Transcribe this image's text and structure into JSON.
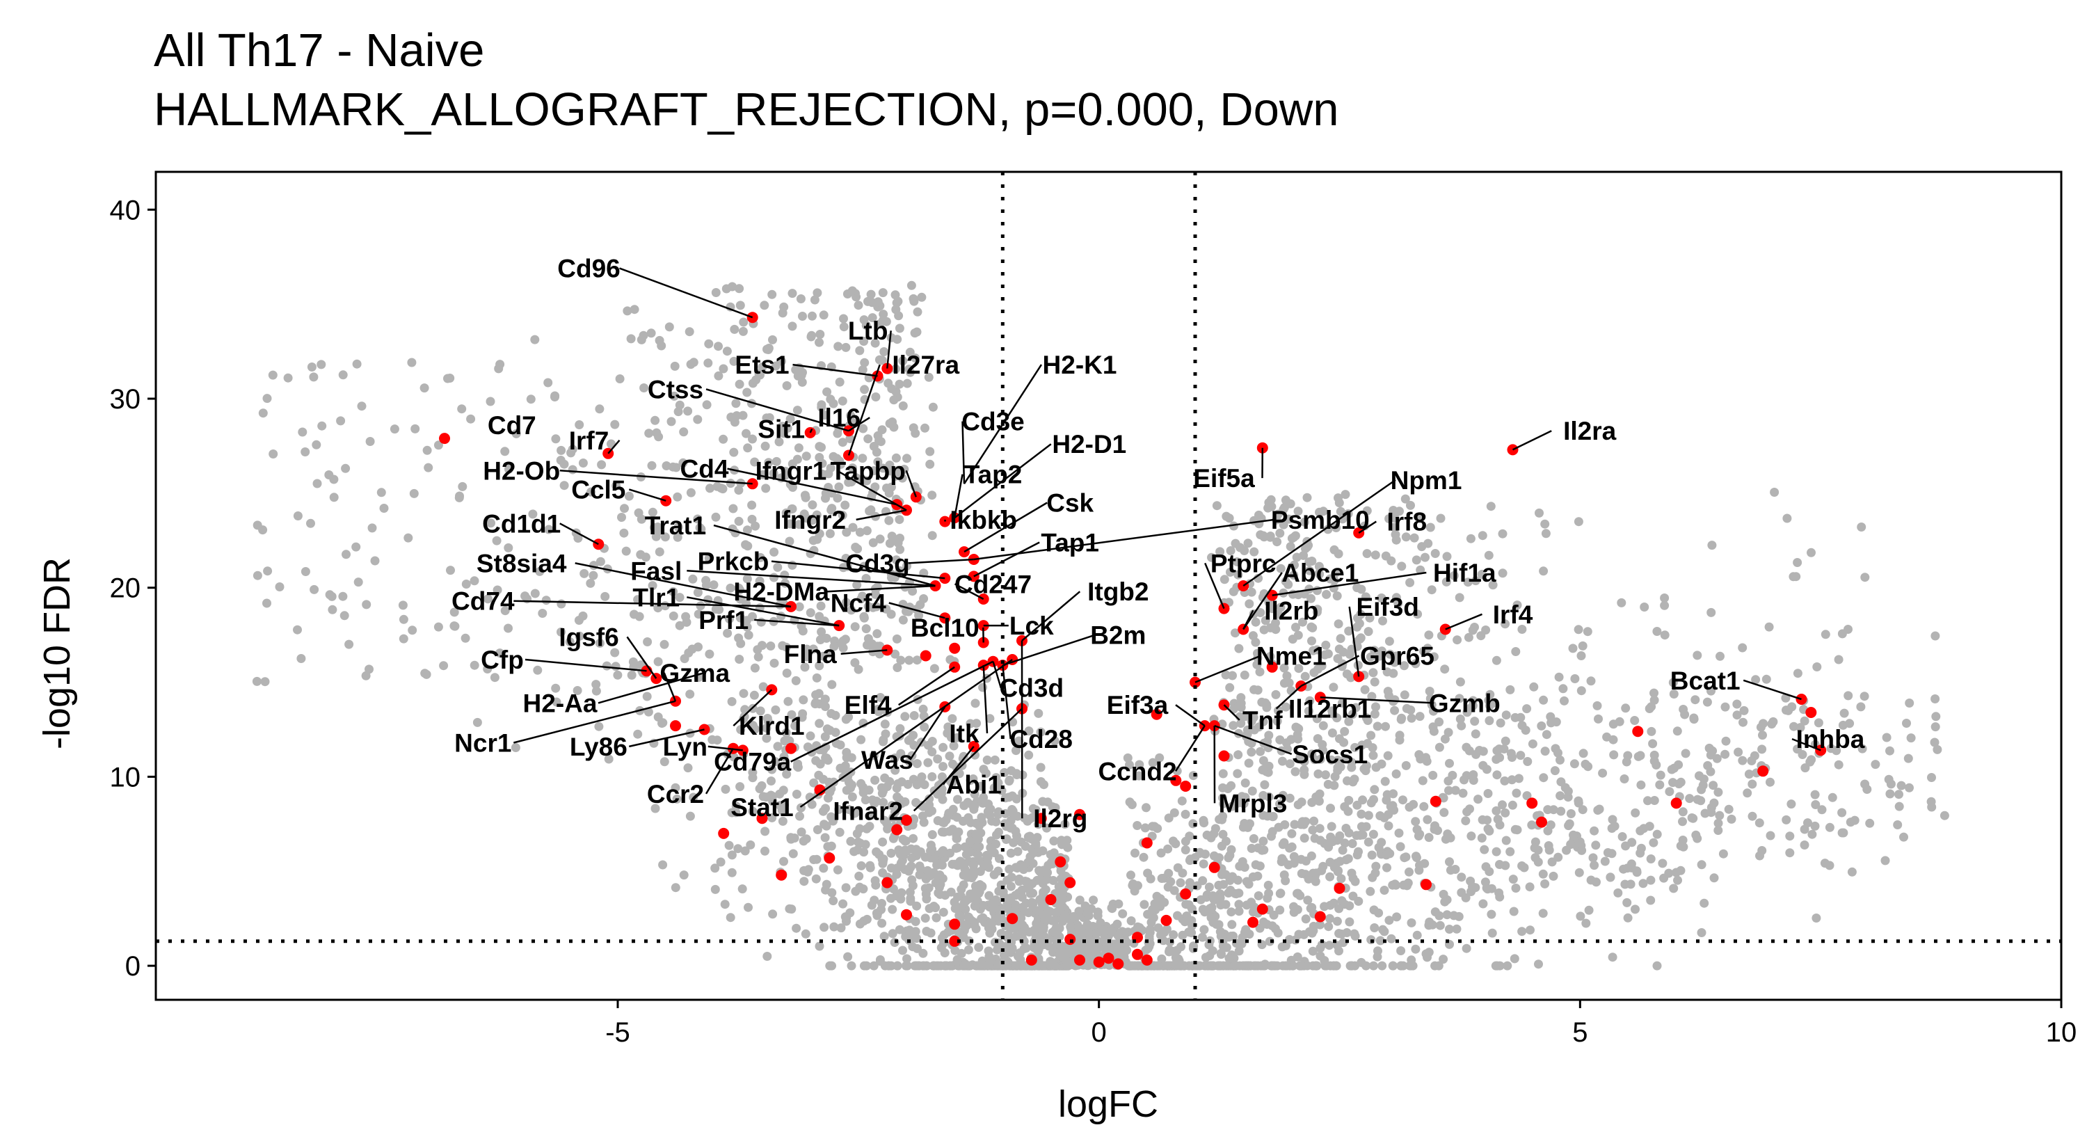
{
  "chart_data": {
    "type": "scatter",
    "title": "All Th17 - Naive",
    "subtitle": "HALLMARK_ALLOGRAFT_REJECTION, p=0.000, Down",
    "xlabel": "logFC",
    "ylabel": "-log10 FDR",
    "xlim": [
      -9.8,
      10
    ],
    "ylim": [
      -1.8,
      42
    ],
    "xticks": [
      -5,
      0,
      5,
      10
    ],
    "xtick_labels": [
      "-5",
      "0",
      "5",
      "10"
    ],
    "yticks": [
      0,
      10,
      20,
      30,
      40
    ],
    "ytick_labels": [
      "0",
      "10",
      "20",
      "30",
      "40"
    ],
    "grid": false,
    "legend": "none",
    "thresholds": {
      "logFC": [
        -1,
        1
      ],
      "neg_log10_fdr": 1.3
    },
    "colors": {
      "background_genes": "#b3b3b3",
      "gene_set": "#ff0000",
      "label_text": "#000000"
    },
    "series": [
      {
        "points": [
          [
            -6.8,
            27.9
          ],
          [
            -5.1,
            27.1
          ],
          [
            -4.5,
            24.6
          ],
          [
            -3.6,
            34.3
          ],
          [
            -3.6,
            25.5
          ],
          [
            -5.2,
            22.3
          ],
          [
            -3.2,
            19.0
          ],
          [
            -2.7,
            18.0
          ],
          [
            -4.7,
            15.6
          ],
          [
            -4.6,
            15.2
          ],
          [
            -4.4,
            14.0
          ],
          [
            -4.4,
            12.7
          ],
          [
            -4.1,
            12.5
          ],
          [
            -3.4,
            14.6
          ],
          [
            -3.8,
            11.5
          ],
          [
            -3.7,
            11.4
          ],
          [
            -3.2,
            11.5
          ],
          [
            -2.9,
            9.3
          ],
          [
            -2.2,
            31.6
          ],
          [
            -2.3,
            31.2
          ],
          [
            -2.6,
            28.3
          ],
          [
            -2.6,
            27.0
          ],
          [
            -3.0,
            28.2
          ],
          [
            -2.0,
            24.1
          ],
          [
            -2.1,
            24.4
          ],
          [
            -1.9,
            24.8
          ],
          [
            -1.6,
            23.5
          ],
          [
            -1.5,
            23.7
          ],
          [
            -1.4,
            21.9
          ],
          [
            -1.3,
            21.5
          ],
          [
            -1.3,
            20.6
          ],
          [
            -1.7,
            20.1
          ],
          [
            -1.6,
            20.5
          ],
          [
            -1.2,
            19.4
          ],
          [
            -1.2,
            18.0
          ],
          [
            -1.2,
            17.1
          ],
          [
            -1.6,
            18.4
          ],
          [
            -1.5,
            16.8
          ],
          [
            -1.8,
            16.4
          ],
          [
            -2.2,
            16.7
          ],
          [
            -1.5,
            15.8
          ],
          [
            -1.2,
            15.9
          ],
          [
            -1.1,
            16.1
          ],
          [
            -1.0,
            15.9
          ],
          [
            -0.9,
            16.2
          ],
          [
            -0.8,
            17.2
          ],
          [
            -0.8,
            13.6
          ],
          [
            -1.6,
            13.7
          ],
          [
            -1.3,
            11.6
          ],
          [
            -0.6,
            7.8
          ],
          [
            -0.2,
            8.0
          ],
          [
            0.5,
            6.5
          ],
          [
            -2.0,
            7.7
          ],
          [
            -2.1,
            7.2
          ],
          [
            -2.8,
            5.7
          ],
          [
            -3.3,
            4.8
          ],
          [
            -3.9,
            7.0
          ],
          [
            -3.5,
            7.8
          ],
          [
            -2.2,
            4.4
          ],
          [
            -2.0,
            2.7
          ],
          [
            -1.5,
            1.3
          ],
          [
            -1.5,
            2.2
          ],
          [
            -0.9,
            2.5
          ],
          [
            -0.5,
            3.5
          ],
          [
            -0.3,
            4.4
          ],
          [
            -0.4,
            5.5
          ],
          [
            -0.7,
            0.3
          ],
          [
            -0.3,
            1.4
          ],
          [
            -0.2,
            0.3
          ],
          [
            0.0,
            0.2
          ],
          [
            0.1,
            0.4
          ],
          [
            0.2,
            0.1
          ],
          [
            0.4,
            1.5
          ],
          [
            0.4,
            0.6
          ],
          [
            0.5,
            0.3
          ],
          [
            0.7,
            2.4
          ],
          [
            0.9,
            3.8
          ],
          [
            0.8,
            9.8
          ],
          [
            0.6,
            13.3
          ],
          [
            0.9,
            9.5
          ],
          [
            1.1,
            12.7
          ],
          [
            1.2,
            12.7
          ],
          [
            1.3,
            11.1
          ],
          [
            1.2,
            5.2
          ],
          [
            1.0,
            15.0
          ],
          [
            1.3,
            13.8
          ],
          [
            1.5,
            17.8
          ],
          [
            1.5,
            20.1
          ],
          [
            1.3,
            18.9
          ],
          [
            1.8,
            19.6
          ],
          [
            1.7,
            27.4
          ],
          [
            1.8,
            15.8
          ],
          [
            2.1,
            14.8
          ],
          [
            2.3,
            14.2
          ],
          [
            2.7,
            22.9
          ],
          [
            2.7,
            15.3
          ],
          [
            2.5,
            4.1
          ],
          [
            2.3,
            2.6
          ],
          [
            1.7,
            3.0
          ],
          [
            1.6,
            2.3
          ],
          [
            3.5,
            8.7
          ],
          [
            3.4,
            4.3
          ],
          [
            4.3,
            27.3
          ],
          [
            3.6,
            17.8
          ],
          [
            4.5,
            8.6
          ],
          [
            4.6,
            7.6
          ],
          [
            5.6,
            12.4
          ],
          [
            6.0,
            8.6
          ],
          [
            6.9,
            10.3
          ],
          [
            7.3,
            14.1
          ],
          [
            7.4,
            13.4
          ],
          [
            7.5,
            11.4
          ]
        ]
      }
    ],
    "annotations": [
      "Cd96",
      "Ltb",
      "Ets1",
      "Il27ra",
      "H2-K1",
      "Ctss",
      "Il16",
      "Cd3e",
      "Cd7",
      "Sit1",
      "Irf7",
      "H2-D1",
      "Il2ra",
      "Tapbp",
      "Tap2",
      "H2-Ob",
      "Cd4",
      "Ifngr1",
      "Eif5a",
      "Npm1",
      "Ccl5",
      "Csk",
      "Ikbkb",
      "Cd1d1",
      "Ifngr2",
      "Psmb10",
      "Irf8",
      "Trat1",
      "Tap1",
      "St8sia4",
      "Prkcb",
      "Fasl",
      "Cd3g",
      "Ptprc",
      "Abce1",
      "Hif1a",
      "Cd247",
      "H2-DMa",
      "Itgb2",
      "Cd74",
      "Tlr1",
      "Ncf4",
      "Il2rb",
      "Eif3d",
      "Irf4",
      "Prf1",
      "Lck",
      "Bcl10",
      "B2m",
      "Igsf6",
      "Flna",
      "Nme1",
      "Gpr65",
      "Cfp",
      "Gzma",
      "Cd3d",
      "Bcat1",
      "Eif3a",
      "Gzmb",
      "Il12rb1",
      "H2-Aa",
      "Klrd1",
      "Elf4",
      "Tnf",
      "Cd28",
      "Ncr1",
      "Itk",
      "Inhba",
      "Ly86",
      "Lyn",
      "Socs1",
      "Cd79a",
      "Was",
      "Ccnd2",
      "Abi1",
      "Ccr2",
      "Mrpl3",
      "Stat1",
      "Ifnar2",
      "Il2rg"
    ]
  }
}
